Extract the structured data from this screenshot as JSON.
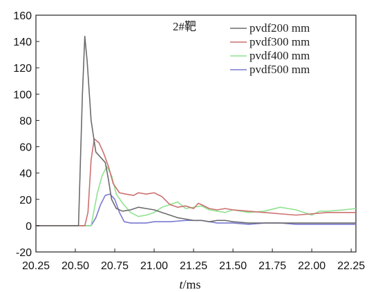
{
  "chart_data": {
    "type": "line",
    "title": "",
    "annotation": "2#靶",
    "xlabel": {
      "italic_part": "t",
      "rest": "/ms"
    },
    "ylabel": "",
    "xlim": [
      20.25,
      22.28
    ],
    "ylim": [
      -20,
      160
    ],
    "x_ticks": [
      20.25,
      20.5,
      20.75,
      21.0,
      21.25,
      21.5,
      21.75,
      22.0,
      22.25
    ],
    "x_tick_labels": [
      "20.25",
      "20.50",
      "20.75",
      "21.00",
      "21.25",
      "21.50",
      "21.75",
      "22.00",
      "22.25"
    ],
    "y_ticks": [
      -20,
      0,
      20,
      40,
      60,
      80,
      100,
      120,
      140,
      160
    ],
    "y_tick_labels": [
      "-20",
      "0",
      "20",
      "40",
      "60",
      "80",
      "100",
      "120",
      "140",
      "160"
    ],
    "grid": false,
    "legend_position": "top-right",
    "series": [
      {
        "name": "pvdf200 mm",
        "color": "#6b6b6b",
        "x": [
          20.25,
          20.52,
          20.545,
          20.56,
          20.575,
          20.6,
          20.63,
          20.66,
          20.69,
          20.71,
          20.73,
          20.76,
          20.8,
          20.85,
          20.9,
          20.95,
          21.0,
          21.05,
          21.1,
          21.15,
          21.2,
          21.25,
          21.3,
          21.35,
          21.4,
          21.45,
          21.5,
          21.6,
          21.7,
          21.8,
          21.9,
          22.0,
          22.1,
          22.2,
          22.28
        ],
        "y": [
          0,
          0,
          100,
          144,
          125,
          80,
          56,
          52,
          48,
          35,
          20,
          13,
          11,
          12,
          14,
          13,
          12,
          10,
          8,
          6,
          5,
          4,
          4,
          3,
          4,
          4,
          3,
          2,
          2,
          2,
          2,
          2,
          2,
          2,
          2
        ]
      },
      {
        "name": "pvdf300 mm",
        "color": "#cc6f6f",
        "x": [
          20.25,
          20.56,
          20.58,
          20.6,
          20.62,
          20.65,
          20.68,
          20.71,
          20.74,
          20.78,
          20.82,
          20.87,
          20.9,
          20.95,
          21.0,
          21.05,
          21.1,
          21.15,
          21.2,
          21.25,
          21.28,
          21.3,
          21.35,
          21.4,
          21.45,
          21.5,
          21.6,
          21.7,
          21.8,
          21.9,
          22.0,
          22.1,
          22.2,
          22.28
        ],
        "y": [
          0,
          0,
          10,
          50,
          66,
          63,
          55,
          45,
          32,
          25,
          24,
          23,
          25,
          24,
          25,
          22,
          16,
          14,
          15,
          13,
          17,
          16,
          13,
          12,
          13,
          12,
          11,
          10,
          9,
          8,
          9,
          10,
          10,
          10
        ]
      },
      {
        "name": "pvdf400 mm",
        "color": "#8fe28f",
        "x": [
          20.25,
          20.6,
          20.64,
          20.67,
          20.7,
          20.73,
          20.76,
          20.8,
          20.85,
          20.9,
          20.95,
          21.0,
          21.05,
          21.1,
          21.15,
          21.2,
          21.25,
          21.3,
          21.35,
          21.4,
          21.45,
          21.5,
          21.6,
          21.7,
          21.8,
          21.9,
          22.0,
          22.05,
          22.1,
          22.2,
          22.28
        ],
        "y": [
          0,
          0,
          25,
          38,
          45,
          38,
          24,
          17,
          10,
          7,
          8,
          10,
          14,
          16,
          18,
          13,
          14,
          15,
          12,
          11,
          10,
          12,
          10,
          11,
          14,
          12,
          8,
          11,
          11,
          12,
          13
        ]
      },
      {
        "name": "pvdf500 mm",
        "color": "#7878d2",
        "x": [
          20.25,
          20.6,
          20.63,
          20.66,
          20.69,
          20.72,
          20.75,
          20.78,
          20.81,
          20.85,
          20.9,
          20.95,
          21.0,
          21.1,
          21.2,
          21.3,
          21.4,
          21.5,
          21.6,
          21.7,
          21.8,
          21.9,
          22.0,
          22.1,
          22.2,
          22.28
        ],
        "y": [
          0,
          0,
          6,
          16,
          23,
          24,
          20,
          10,
          3,
          2,
          2,
          2,
          3,
          3,
          4,
          4,
          2,
          2,
          1,
          2,
          2,
          1,
          1,
          1,
          1,
          1
        ]
      }
    ]
  }
}
